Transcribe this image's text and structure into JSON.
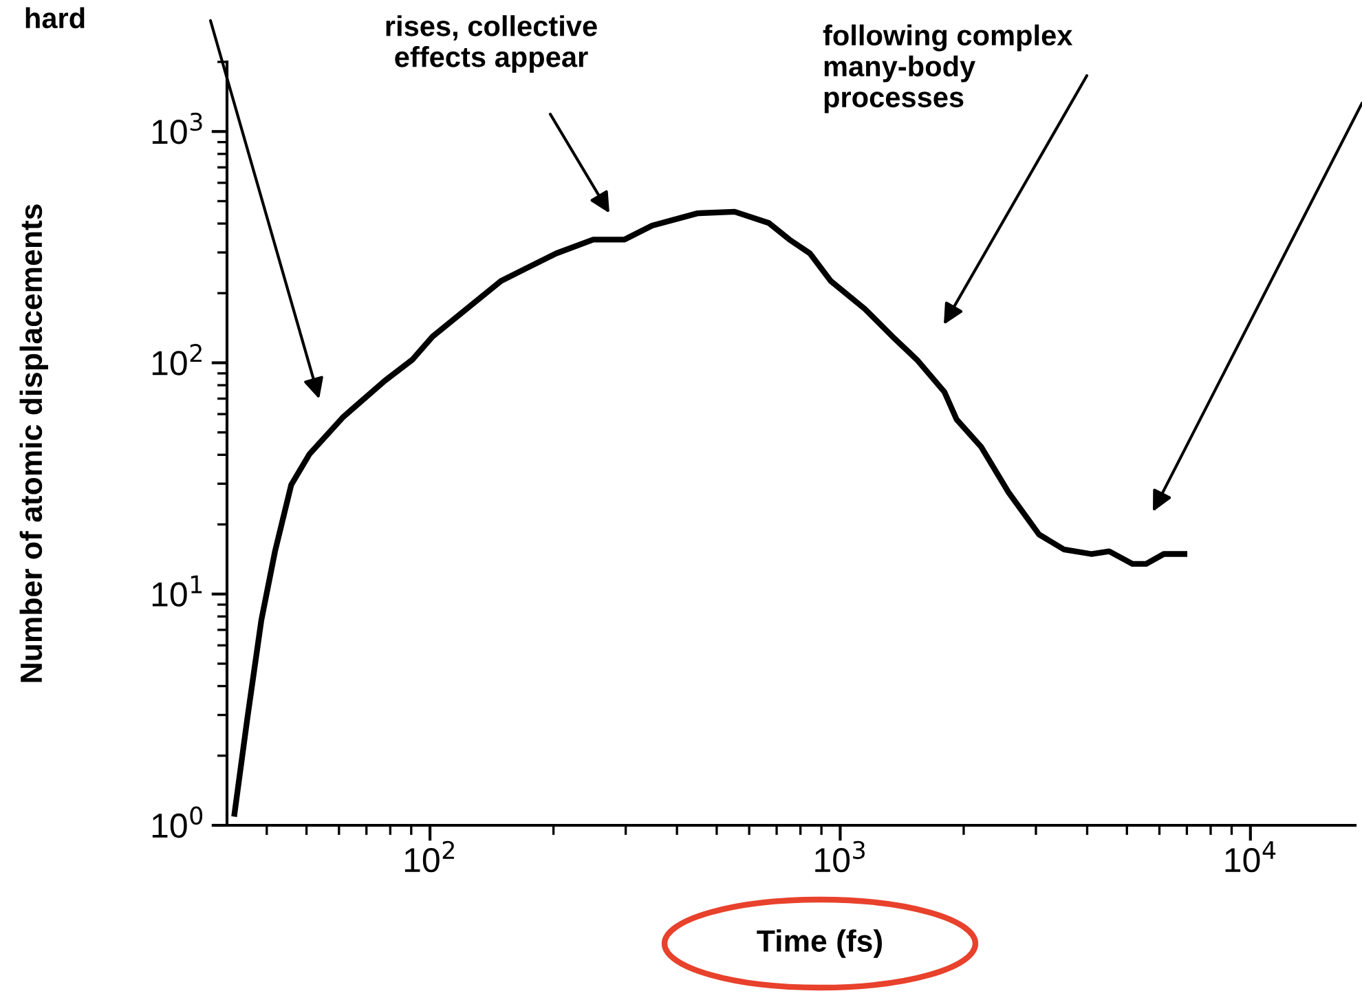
{
  "chart_data": {
    "type": "line",
    "xlabel": "Time (fs)",
    "ylabel": "Number of atomic displacements",
    "log": "xy",
    "xlim": [
      32,
      18000
    ],
    "ylim": [
      1,
      2000
    ],
    "xticks": [
      {
        "value": 100,
        "label": "10$^{2}$"
      },
      {
        "value": 1000,
        "label": "10$^{3}$"
      },
      {
        "value": 10000,
        "label": "10$^{4}$"
      }
    ],
    "yticks": [
      {
        "value": 1,
        "label": "10$^{0}$"
      },
      {
        "value": 10,
        "label": "10$^{1}$"
      },
      {
        "value": 100,
        "label": "10$^{2}$"
      },
      {
        "value": 1000,
        "label": "10$^{3}$"
      }
    ],
    "grid": false,
    "marker": "none",
    "line_style": "solid",
    "series": [
      {
        "color": "#000000",
        "x": [
          33.3,
          35.9,
          38.8,
          41.9,
          45.9,
          50.8,
          61.5,
          77.6,
          90.5,
          101.5,
          149,
          203,
          250,
          298,
          348,
          449,
          553,
          670,
          752,
          844,
          948,
          1148,
          1340,
          1539,
          1795,
          1923,
          2208,
          2577,
          3053,
          3508,
          4093,
          4526,
          5157,
          5570,
          6151,
          7017
        ],
        "values": [
          1.09,
          2.93,
          7.7,
          15.3,
          29.7,
          40.2,
          58.4,
          83.6,
          103,
          130,
          226,
          297,
          341,
          341,
          392,
          443,
          450,
          402,
          341,
          297,
          226,
          171,
          130,
          103,
          74.8,
          56.8,
          43.2,
          27.4,
          18.1,
          15.6,
          14.9,
          15.3,
          13.5,
          13.5,
          14.9,
          14.9
        ]
      }
    ],
    "annotations": [
      "hard",
      "rises, collective\neffects appear",
      "following complex\nmany-body\nprocesses"
    ]
  }
}
